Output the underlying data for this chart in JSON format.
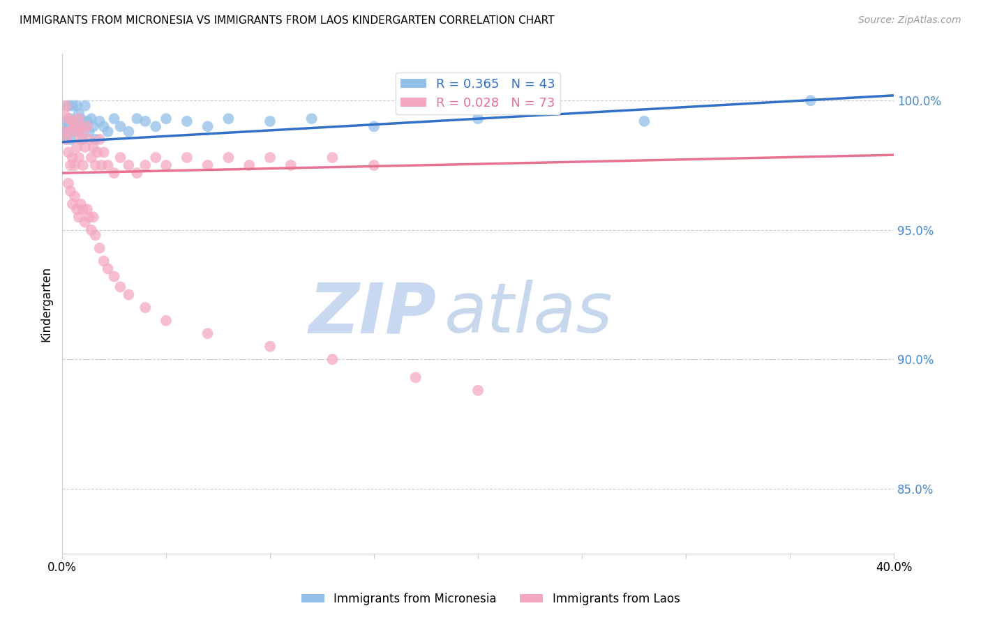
{
  "title": "IMMIGRANTS FROM MICRONESIA VS IMMIGRANTS FROM LAOS KINDERGARTEN CORRELATION CHART",
  "source": "Source: ZipAtlas.com",
  "ylabel": "Kindergarten",
  "right_ytick_labels": [
    "85.0%",
    "90.0%",
    "95.0%",
    "100.0%"
  ],
  "right_ytick_values": [
    0.85,
    0.9,
    0.95,
    1.0
  ],
  "xlim": [
    0.0,
    0.4
  ],
  "ylim": [
    0.825,
    1.018
  ],
  "blue_label": "Immigrants from Micronesia",
  "pink_label": "Immigrants from Laos",
  "blue_R": 0.365,
  "blue_N": 43,
  "pink_R": 0.028,
  "pink_N": 73,
  "blue_color": "#92c0e8",
  "pink_color": "#f4a8c0",
  "blue_line_color": "#3070c8",
  "pink_line_color": "#e87090",
  "watermark_zip": "ZIP",
  "watermark_atlas": "atlas",
  "watermark_color_zip": "#c8d8f0",
  "watermark_color_atlas": "#c8d8ec",
  "blue_x": [
    0.001,
    0.002,
    0.002,
    0.003,
    0.003,
    0.004,
    0.004,
    0.005,
    0.005,
    0.006,
    0.006,
    0.007,
    0.007,
    0.008,
    0.008,
    0.009,
    0.01,
    0.01,
    0.011,
    0.012,
    0.013,
    0.014,
    0.015,
    0.016,
    0.018,
    0.02,
    0.022,
    0.025,
    0.028,
    0.032,
    0.036,
    0.04,
    0.045,
    0.05,
    0.06,
    0.07,
    0.08,
    0.1,
    0.12,
    0.15,
    0.2,
    0.28,
    0.36
  ],
  "blue_y": [
    0.988,
    0.992,
    0.985,
    0.998,
    0.99,
    0.993,
    0.985,
    0.998,
    0.992,
    0.99,
    0.988,
    0.998,
    0.992,
    0.995,
    0.988,
    0.993,
    0.99,
    0.985,
    0.998,
    0.992,
    0.988,
    0.993,
    0.99,
    0.985,
    0.992,
    0.99,
    0.988,
    0.993,
    0.99,
    0.988,
    0.993,
    0.992,
    0.99,
    0.993,
    0.992,
    0.99,
    0.993,
    0.992,
    0.993,
    0.99,
    0.993,
    0.992,
    1.0
  ],
  "pink_x": [
    0.001,
    0.001,
    0.002,
    0.002,
    0.003,
    0.003,
    0.004,
    0.004,
    0.005,
    0.005,
    0.006,
    0.006,
    0.007,
    0.007,
    0.008,
    0.008,
    0.009,
    0.009,
    0.01,
    0.01,
    0.011,
    0.012,
    0.013,
    0.014,
    0.015,
    0.016,
    0.017,
    0.018,
    0.019,
    0.02,
    0.022,
    0.025,
    0.028,
    0.032,
    0.036,
    0.04,
    0.045,
    0.05,
    0.06,
    0.07,
    0.08,
    0.09,
    0.1,
    0.11,
    0.13,
    0.15,
    0.003,
    0.004,
    0.005,
    0.006,
    0.007,
    0.008,
    0.009,
    0.01,
    0.011,
    0.012,
    0.013,
    0.014,
    0.015,
    0.016,
    0.018,
    0.02,
    0.022,
    0.025,
    0.028,
    0.032,
    0.04,
    0.05,
    0.07,
    0.1,
    0.13,
    0.17,
    0.2
  ],
  "pink_y": [
    0.995,
    0.988,
    0.998,
    0.985,
    0.993,
    0.98,
    0.988,
    0.975,
    0.992,
    0.978,
    0.99,
    0.975,
    0.988,
    0.982,
    0.993,
    0.978,
    0.99,
    0.985,
    0.988,
    0.975,
    0.982,
    0.99,
    0.985,
    0.978,
    0.982,
    0.975,
    0.98,
    0.985,
    0.975,
    0.98,
    0.975,
    0.972,
    0.978,
    0.975,
    0.972,
    0.975,
    0.978,
    0.975,
    0.978,
    0.975,
    0.978,
    0.975,
    0.978,
    0.975,
    0.978,
    0.975,
    0.968,
    0.965,
    0.96,
    0.963,
    0.958,
    0.955,
    0.96,
    0.958,
    0.953,
    0.958,
    0.955,
    0.95,
    0.955,
    0.948,
    0.943,
    0.938,
    0.935,
    0.932,
    0.928,
    0.925,
    0.92,
    0.915,
    0.91,
    0.905,
    0.9,
    0.893,
    0.888
  ]
}
